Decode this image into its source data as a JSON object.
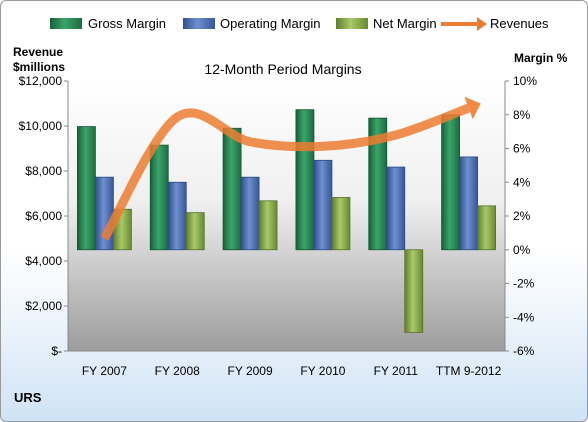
{
  "chart_data": {
    "type": "bar",
    "title": "12-Month Period Margins",
    "company": "URS",
    "left_axis": {
      "label_line1": "Revenue",
      "label_line2": "$millions",
      "min": 0,
      "max": 12000,
      "step": 2000,
      "tick_labels": [
        "$-",
        "$2,000",
        "$4,000",
        "$6,000",
        "$8,000",
        "$10,000",
        "$12,000"
      ]
    },
    "right_axis": {
      "label": "Margin %",
      "min": -6,
      "max": 10,
      "step": 2,
      "tick_labels": [
        "-6%",
        "-4%",
        "-2%",
        "0%",
        "2%",
        "4%",
        "6%",
        "8%",
        "10%"
      ]
    },
    "categories": [
      "FY 2007",
      "FY 2008",
      "FY 2009",
      "FY 2010",
      "FY 2011",
      "TTM 9-2012"
    ],
    "series": [
      {
        "name": "Gross Margin",
        "axis": "right",
        "kind": "bar",
        "color": "#2e8b57",
        "values": [
          7.3,
          6.2,
          7.2,
          8.3,
          7.8,
          8.0
        ]
      },
      {
        "name": "Operating Margin",
        "axis": "right",
        "kind": "bar",
        "color": "#4f74b8",
        "values": [
          4.3,
          4.0,
          4.3,
          5.3,
          4.9,
          5.5
        ]
      },
      {
        "name": "Net Margin",
        "axis": "right",
        "kind": "bar",
        "color": "#8fb34a",
        "values": [
          2.4,
          2.2,
          2.9,
          3.1,
          -4.9,
          2.6
        ]
      },
      {
        "name": "Revenues",
        "axis": "left",
        "kind": "line",
        "color": "#ed7d31",
        "values": [
          5000,
          10400,
          9300,
          9100,
          9600,
          10800
        ]
      }
    ],
    "legend_position": "top",
    "grid": false
  }
}
